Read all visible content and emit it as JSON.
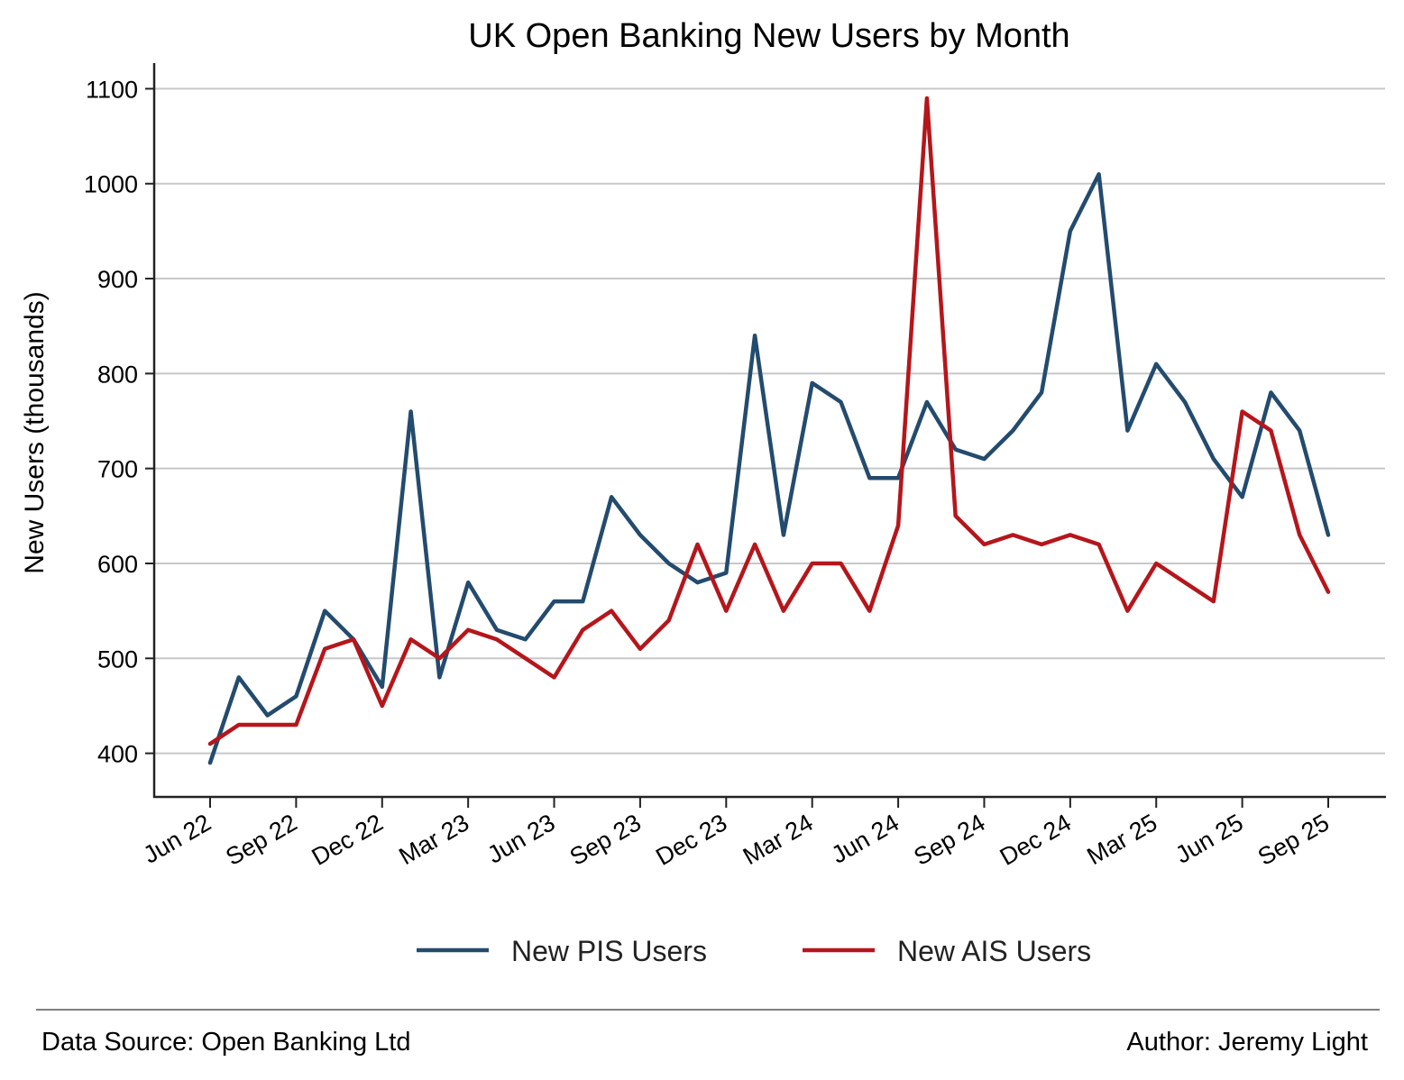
{
  "chart_data": {
    "type": "line",
    "title": "UK Open Banking New Users by Month",
    "xlabel": "",
    "ylabel": "New Users (thousands)",
    "x": [
      "Jun 22",
      "Jul 22",
      "Aug 22",
      "Sep 22",
      "Oct 22",
      "Nov 22",
      "Dec 22",
      "Jan 23",
      "Feb 23",
      "Mar 23",
      "Apr 23",
      "May 23",
      "Jun 23",
      "Jul 23",
      "Aug 23",
      "Sep 23",
      "Oct 23",
      "Nov 23",
      "Dec 23",
      "Jan 24",
      "Feb 24",
      "Mar 24",
      "Apr 24",
      "May 24",
      "Jun 24",
      "Jul 24",
      "Aug 24",
      "Sep 24",
      "Oct 24",
      "Nov 24",
      "Dec 24",
      "Jan 25",
      "Feb 25",
      "Mar 25",
      "Apr 25",
      "May 25",
      "Jun 25",
      "Jul 25",
      "Aug 25",
      "Sep 25"
    ],
    "x_ticks": [
      "Jun 22",
      "Sep 22",
      "Dec 22",
      "Mar 23",
      "Jun 23",
      "Sep 23",
      "Dec 23",
      "Mar 24",
      "Jun 24",
      "Sep 24",
      "Dec 24",
      "Mar 25",
      "Jun 25",
      "Sep 25"
    ],
    "ylim": [
      355,
      1127
    ],
    "y_ticks": [
      400,
      500,
      600,
      700,
      800,
      900,
      1000,
      1100
    ],
    "grid": "horizontal",
    "legend_position": "bottom-center",
    "series": [
      {
        "name": "New PIS Users",
        "color": "#234b6e",
        "values": [
          390,
          480,
          440,
          460,
          550,
          520,
          470,
          760,
          480,
          580,
          530,
          520,
          560,
          560,
          670,
          630,
          600,
          580,
          590,
          840,
          630,
          790,
          770,
          690,
          690,
          770,
          720,
          710,
          740,
          780,
          950,
          1010,
          740,
          810,
          770,
          710,
          670,
          780,
          740,
          630
        ]
      },
      {
        "name": "New AIS Users",
        "color": "#b5161b",
        "values": [
          410,
          430,
          430,
          430,
          510,
          520,
          450,
          520,
          500,
          530,
          520,
          500,
          480,
          530,
          550,
          510,
          540,
          620,
          550,
          620,
          550,
          600,
          600,
          550,
          640,
          1090,
          650,
          620,
          630,
          620,
          630,
          620,
          550,
          600,
          580,
          560,
          760,
          740,
          630,
          570
        ]
      }
    ]
  },
  "footer": {
    "source": "Data Source: Open Banking Ltd",
    "author": "Author: Jeremy Light"
  }
}
